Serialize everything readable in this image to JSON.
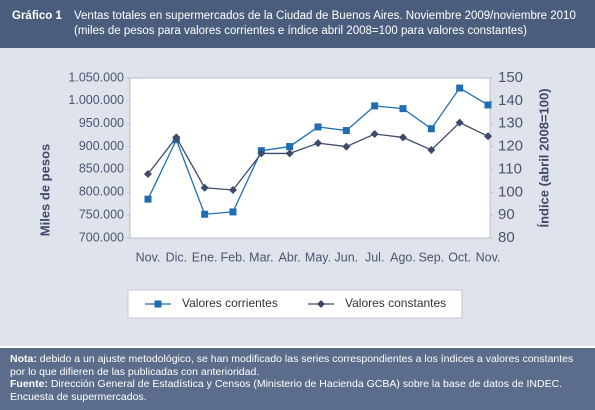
{
  "header": {
    "label": "Gráfico 1",
    "title": "Ventas totales en supermercados de la Ciudad de Buenos Aires. Noviembre 2009/noviembre 2010",
    "subtitle": "(miles de pesos para valores corrientes e índice abril 2008=100 para valores constantes)"
  },
  "chart_data": {
    "type": "line",
    "y_label": "Miles de pesos",
    "y2_label": "Índice (abril 2008=100)",
    "categories": [
      "Nov.",
      "Dic.",
      "Ene.",
      "Feb.",
      "Mar.",
      "Abr.",
      "May.",
      "Jun.",
      "Jul.",
      "Ago.",
      "Sep.",
      "Oct.",
      "Nov."
    ],
    "ylim": [
      700000,
      1050000
    ],
    "yticks": [
      {
        "value": 700000,
        "label": "700.000"
      },
      {
        "value": 750000,
        "label": "750.000"
      },
      {
        "value": 800000,
        "label": "800.000"
      },
      {
        "value": 850000,
        "label": "850.000"
      },
      {
        "value": 900000,
        "label": "900.000"
      },
      {
        "value": 950000,
        "label": "950.000"
      },
      {
        "value": 1000000,
        "label": "1.000.000"
      },
      {
        "value": 1050000,
        "label": "1.050.000"
      }
    ],
    "y2lim": [
      80,
      150
    ],
    "y2ticks": [
      80,
      90,
      100,
      110,
      120,
      130,
      140,
      150
    ],
    "legend": "bottom",
    "series": [
      {
        "name": "Valores corrientes",
        "color": "#1f6db3",
        "marker": "square",
        "values": [
          785000,
          915000,
          752000,
          757000,
          891000,
          900000,
          943000,
          935000,
          989000,
          983000,
          939000,
          1028000,
          991000
        ]
      },
      {
        "name": "Valores constantes",
        "color": "#3e4a6a",
        "marker": "diamond",
        "axis": "y2",
        "values": [
          108,
          124,
          102,
          101,
          117,
          117,
          121.5,
          120,
          125.5,
          124,
          118.5,
          130.5,
          124.5
        ]
      }
    ]
  },
  "notes": [
    {
      "label": "Nota:",
      "text": "debido a un ajuste metodológico, se han modificado las series correspondientes a los índices a valores constantes por lo que difieren de las publicadas con anterioridad."
    },
    {
      "label": "Fuente:",
      "text": "Dirección General de Estadística y Censos (Ministerio de Hacienda GCBA) sobre la base de datos de INDEC. Encuesta de supermercados."
    }
  ]
}
